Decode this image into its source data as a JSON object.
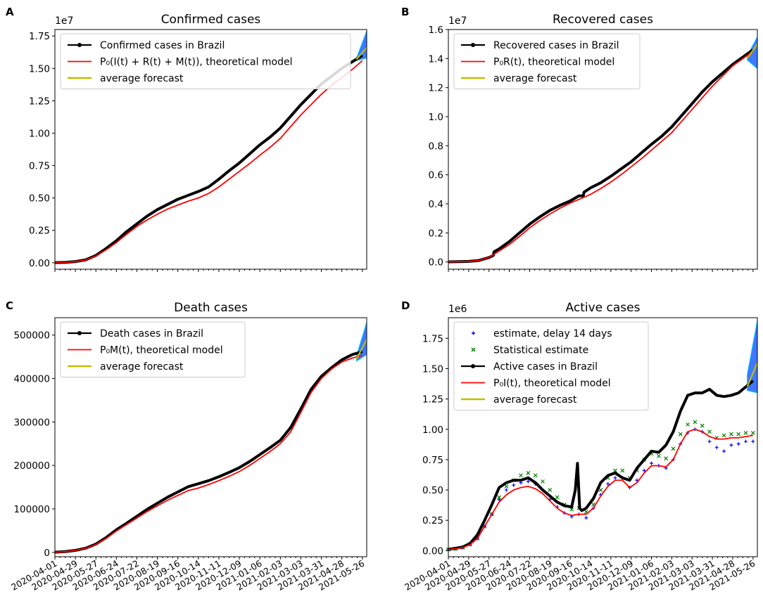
{
  "figure": {
    "date_labels": [
      "2020-04-01",
      "2020-04-29",
      "2020-05-27",
      "2020-06-24",
      "2020-07-22",
      "2020-08-19",
      "2020-09-16",
      "2020-10-14",
      "2020-11-11",
      "2020-12-09",
      "2021-01-06",
      "2021-02-03",
      "2021-03-03",
      "2021-03-31",
      "2021-04-28",
      "2021-05-26"
    ],
    "colors": {
      "observed": "#000000",
      "model": "#ff0000",
      "forecast": "#bfbf00",
      "delay14": "#0000ff",
      "statistical": "#008000",
      "forecast_spread": "#1f5fff"
    }
  },
  "chart_data": [
    {
      "id": "A",
      "type": "line",
      "panel_letter": "A",
      "title": "Confirmed cases",
      "scale_label": "1e7",
      "y_ticks": [
        "0.00",
        "0.25",
        "0.50",
        "0.75",
        "1.00",
        "1.25",
        "1.50",
        "1.75"
      ],
      "ylim": [
        -0.05,
        1.8
      ],
      "xlim": [
        0,
        426
      ],
      "unit_note": "values in units of 1e7; x in days since 2020-04-01",
      "legend": [
        "Confirmed cases in Brazil",
        "P₀(I(t) + R(t) + M(t)), theoretical model",
        "average forecast"
      ],
      "series": [
        {
          "name": "Confirmed cases in Brazil",
          "role": "observed",
          "x": [
            0,
            14,
            28,
            42,
            56,
            70,
            84,
            98,
            112,
            126,
            140,
            154,
            168,
            182,
            196,
            210,
            224,
            238,
            252,
            266,
            280,
            294,
            308,
            322,
            336,
            350,
            364,
            378,
            392,
            406,
            420
          ],
          "y": [
            0.001,
            0.003,
            0.009,
            0.022,
            0.056,
            0.11,
            0.17,
            0.24,
            0.3,
            0.36,
            0.41,
            0.45,
            0.49,
            0.52,
            0.55,
            0.585,
            0.645,
            0.71,
            0.77,
            0.84,
            0.91,
            0.97,
            1.04,
            1.13,
            1.22,
            1.3,
            1.38,
            1.44,
            1.5,
            1.55,
            1.6
          ]
        },
        {
          "name": "P₀(I(t) + R(t) + M(t)), theoretical model",
          "role": "model",
          "x": [
            0,
            14,
            28,
            42,
            56,
            70,
            84,
            98,
            112,
            126,
            140,
            154,
            168,
            182,
            196,
            210,
            224,
            238,
            252,
            266,
            280,
            294,
            308,
            322,
            336,
            350,
            364,
            378,
            392,
            406,
            420
          ],
          "y": [
            0.001,
            0.003,
            0.008,
            0.02,
            0.052,
            0.1,
            0.155,
            0.22,
            0.28,
            0.33,
            0.375,
            0.415,
            0.445,
            0.475,
            0.5,
            0.535,
            0.585,
            0.645,
            0.705,
            0.765,
            0.83,
            0.89,
            0.96,
            1.05,
            1.14,
            1.22,
            1.3,
            1.37,
            1.43,
            1.49,
            1.56
          ]
        },
        {
          "name": "average forecast",
          "role": "forecast",
          "x": [
            412,
            426
          ],
          "y": [
            1.57,
            1.66
          ]
        }
      ],
      "forecast_band": {
        "x": [
          412,
          426
        ],
        "low": [
          1.56,
          1.58
        ],
        "high": [
          1.58,
          1.79
        ]
      }
    },
    {
      "id": "B",
      "type": "line",
      "panel_letter": "B",
      "title": "Recovered cases",
      "scale_label": "1e7",
      "y_ticks": [
        "0.0",
        "0.2",
        "0.4",
        "0.6",
        "0.8",
        "1.0",
        "1.2",
        "1.4",
        "1.6"
      ],
      "ylim": [
        -0.05,
        1.6
      ],
      "xlim": [
        0,
        426
      ],
      "unit_note": "values in units of 1e7; x in days since 2020-04-01",
      "legend": [
        "Recovered cases in Brazil",
        "P₀R(t), theoretical model",
        "average forecast"
      ],
      "series": [
        {
          "name": "Recovered cases in Brazil",
          "role": "observed",
          "x": [
            0,
            14,
            28,
            42,
            56,
            62,
            63,
            70,
            84,
            98,
            112,
            126,
            140,
            154,
            168,
            180,
            186,
            187,
            196,
            210,
            224,
            238,
            252,
            266,
            280,
            294,
            308,
            322,
            336,
            350,
            364,
            378,
            392,
            406,
            420
          ],
          "y": [
            0.001,
            0.002,
            0.004,
            0.01,
            0.03,
            0.045,
            0.07,
            0.09,
            0.14,
            0.2,
            0.26,
            0.31,
            0.355,
            0.39,
            0.42,
            0.455,
            0.455,
            0.48,
            0.51,
            0.545,
            0.59,
            0.64,
            0.69,
            0.75,
            0.81,
            0.865,
            0.93,
            1.01,
            1.09,
            1.17,
            1.24,
            1.3,
            1.36,
            1.41,
            1.46
          ]
        },
        {
          "name": "P₀R(t), theoretical model",
          "role": "model",
          "x": [
            0,
            14,
            28,
            42,
            56,
            70,
            84,
            98,
            112,
            126,
            140,
            154,
            168,
            182,
            196,
            210,
            224,
            238,
            252,
            266,
            280,
            294,
            308,
            322,
            336,
            350,
            364,
            378,
            392,
            406,
            420
          ],
          "y": [
            0.001,
            0.002,
            0.004,
            0.01,
            0.03,
            0.075,
            0.12,
            0.175,
            0.235,
            0.285,
            0.33,
            0.37,
            0.405,
            0.435,
            0.465,
            0.505,
            0.55,
            0.6,
            0.655,
            0.71,
            0.77,
            0.83,
            0.89,
            0.97,
            1.05,
            1.13,
            1.21,
            1.28,
            1.35,
            1.4,
            1.45
          ]
        },
        {
          "name": "average forecast",
          "role": "forecast",
          "x": [
            412,
            426
          ],
          "y": [
            1.4,
            1.5
          ]
        }
      ],
      "forecast_band": {
        "x": [
          412,
          426
        ],
        "low": [
          1.39,
          1.33
        ],
        "high": [
          1.42,
          1.55
        ]
      }
    },
    {
      "id": "C",
      "type": "line",
      "panel_letter": "C",
      "title": "Death cases",
      "scale_label": "",
      "y_ticks": [
        "0",
        "100000",
        "200000",
        "300000",
        "400000",
        "500000"
      ],
      "ylim": [
        -10000,
        540000
      ],
      "xlim": [
        0,
        426
      ],
      "unit_note": "deaths; x in days since 2020-04-01",
      "legend": [
        "Death cases in Brazil",
        "P₀M(t), theoretical model",
        "average forecast"
      ],
      "series": [
        {
          "name": "Death cases in Brazil",
          "role": "observed",
          "x": [
            0,
            14,
            28,
            42,
            56,
            70,
            84,
            98,
            112,
            126,
            140,
            154,
            168,
            182,
            196,
            210,
            224,
            238,
            252,
            266,
            280,
            294,
            308,
            322,
            336,
            350,
            364,
            378,
            392,
            406,
            420
          ],
          "y": [
            240,
            1700,
            4500,
            9500,
            19000,
            34000,
            52000,
            67000,
            83000,
            99000,
            113000,
            127000,
            139000,
            151000,
            158000,
            165000,
            174000,
            184000,
            195000,
            209000,
            225000,
            241000,
            258000,
            287000,
            330000,
            375000,
            405000,
            425000,
            443000,
            455000,
            462000
          ]
        },
        {
          "name": "P₀M(t), theoretical model",
          "role": "model",
          "x": [
            0,
            14,
            28,
            42,
            56,
            70,
            84,
            98,
            112,
            126,
            140,
            154,
            168,
            182,
            196,
            210,
            224,
            238,
            252,
            266,
            280,
            294,
            308,
            322,
            336,
            350,
            364,
            378,
            392,
            406,
            420
          ],
          "y": [
            240,
            1600,
            4300,
            9000,
            18000,
            32000,
            49000,
            64000,
            79000,
            94000,
            107000,
            120000,
            131000,
            142000,
            148000,
            156000,
            165000,
            175000,
            186000,
            200000,
            216000,
            232000,
            250000,
            277000,
            322000,
            368000,
            400000,
            422000,
            438000,
            447000,
            453000
          ]
        },
        {
          "name": "average forecast",
          "role": "forecast",
          "x": [
            412,
            426
          ],
          "y": [
            445000,
            490000
          ]
        }
      ],
      "forecast_band": {
        "x": [
          412,
          426
        ],
        "low": [
          440000,
          455000
        ],
        "high": [
          452000,
          530000
        ]
      }
    },
    {
      "id": "D",
      "type": "line",
      "panel_letter": "D",
      "title": "Active cases",
      "scale_label": "1e6",
      "y_ticks": [
        "0.00",
        "0.25",
        "0.50",
        "0.75",
        "1.00",
        "1.25",
        "1.50",
        "1.75"
      ],
      "ylim": [
        -0.05,
        1.92
      ],
      "xlim": [
        0,
        426
      ],
      "unit_note": "values in units of 1e6; x in days since 2020-04-01",
      "legend": [
        "estimate, delay 14 days",
        "Statistical estimate",
        "Active cases in Brazil",
        "P₀I(t), theoretical model",
        "average forecast"
      ],
      "series": [
        {
          "name": "estimate, delay 14 days",
          "role": "delay14",
          "marker": "plus",
          "x": [
            0,
            10,
            20,
            30,
            40,
            50,
            60,
            70,
            80,
            90,
            100,
            110,
            120,
            130,
            140,
            150,
            160,
            170,
            180,
            190,
            200,
            210,
            220,
            230,
            240,
            250,
            260,
            270,
            280,
            290,
            300,
            310,
            320,
            330,
            340,
            350,
            360,
            370,
            380,
            390,
            400,
            410,
            420
          ],
          "y": [
            0.01,
            0.015,
            0.025,
            0.05,
            0.1,
            0.2,
            0.3,
            0.42,
            0.5,
            0.54,
            0.56,
            0.57,
            0.55,
            0.5,
            0.42,
            0.36,
            0.31,
            0.28,
            0.3,
            0.27,
            0.35,
            0.46,
            0.55,
            0.6,
            0.6,
            0.52,
            0.58,
            0.66,
            0.72,
            0.7,
            0.68,
            0.75,
            0.88,
            0.97,
            1.0,
            0.98,
            0.9,
            0.85,
            0.82,
            0.87,
            0.88,
            0.9,
            0.9
          ]
        },
        {
          "name": "Statistical estimate",
          "role": "statistical",
          "marker": "x",
          "x": [
            0,
            10,
            20,
            30,
            40,
            50,
            60,
            70,
            80,
            90,
            100,
            110,
            120,
            130,
            140,
            150,
            160,
            170,
            180,
            190,
            200,
            210,
            220,
            230,
            240,
            250,
            260,
            270,
            280,
            290,
            300,
            310,
            320,
            330,
            340,
            350,
            360,
            370,
            380,
            390,
            400,
            410,
            420
          ],
          "y": [
            0.01,
            0.015,
            0.025,
            0.05,
            0.1,
            0.2,
            0.3,
            0.44,
            0.53,
            0.58,
            0.62,
            0.64,
            0.62,
            0.57,
            0.5,
            0.44,
            0.38,
            0.34,
            0.35,
            0.32,
            0.38,
            0.5,
            0.6,
            0.66,
            0.66,
            0.6,
            0.66,
            0.75,
            0.8,
            0.78,
            0.76,
            0.84,
            0.96,
            1.04,
            1.06,
            1.03,
            0.98,
            0.93,
            0.95,
            0.96,
            0.96,
            0.97,
            0.97
          ]
        },
        {
          "name": "Active cases in Brazil",
          "role": "observed",
          "x": [
            0,
            10,
            20,
            30,
            40,
            50,
            60,
            70,
            80,
            90,
            100,
            110,
            120,
            130,
            140,
            150,
            160,
            170,
            175,
            178,
            181,
            184,
            187,
            190,
            200,
            210,
            220,
            230,
            240,
            250,
            260,
            270,
            280,
            290,
            300,
            310,
            320,
            330,
            340,
            350,
            360,
            370,
            380,
            390,
            400,
            410,
            420
          ],
          "y": [
            0.01,
            0.02,
            0.03,
            0.06,
            0.13,
            0.25,
            0.38,
            0.52,
            0.56,
            0.58,
            0.58,
            0.6,
            0.56,
            0.5,
            0.45,
            0.4,
            0.37,
            0.36,
            0.5,
            0.72,
            0.35,
            0.33,
            0.34,
            0.35,
            0.43,
            0.56,
            0.62,
            0.64,
            0.6,
            0.58,
            0.68,
            0.75,
            0.82,
            0.81,
            0.87,
            0.98,
            1.15,
            1.28,
            1.3,
            1.3,
            1.33,
            1.28,
            1.27,
            1.28,
            1.3,
            1.35,
            1.4
          ]
        },
        {
          "name": "P₀I(t), theoretical model",
          "role": "model",
          "x": [
            0,
            10,
            20,
            30,
            40,
            50,
            60,
            70,
            80,
            90,
            100,
            110,
            120,
            130,
            140,
            150,
            160,
            170,
            180,
            190,
            200,
            210,
            220,
            230,
            240,
            250,
            260,
            270,
            280,
            290,
            300,
            310,
            320,
            330,
            340,
            350,
            360,
            370,
            380,
            390,
            400,
            410,
            420
          ],
          "y": [
            0.01,
            0.015,
            0.025,
            0.05,
            0.1,
            0.2,
            0.3,
            0.4,
            0.46,
            0.5,
            0.52,
            0.53,
            0.51,
            0.47,
            0.41,
            0.35,
            0.31,
            0.29,
            0.3,
            0.3,
            0.35,
            0.45,
            0.53,
            0.58,
            0.58,
            0.52,
            0.56,
            0.64,
            0.7,
            0.7,
            0.69,
            0.75,
            0.88,
            0.98,
            1.0,
            0.98,
            0.94,
            0.92,
            0.92,
            0.93,
            0.93,
            0.94,
            0.95
          ]
        },
        {
          "name": "average forecast",
          "role": "forecast",
          "x": [
            412,
            426
          ],
          "y": [
            1.35,
            1.55
          ]
        }
      ],
      "forecast_band": {
        "x": [
          412,
          426
        ],
        "low": [
          1.32,
          1.3
        ],
        "high": [
          1.45,
          1.9
        ]
      }
    }
  ]
}
